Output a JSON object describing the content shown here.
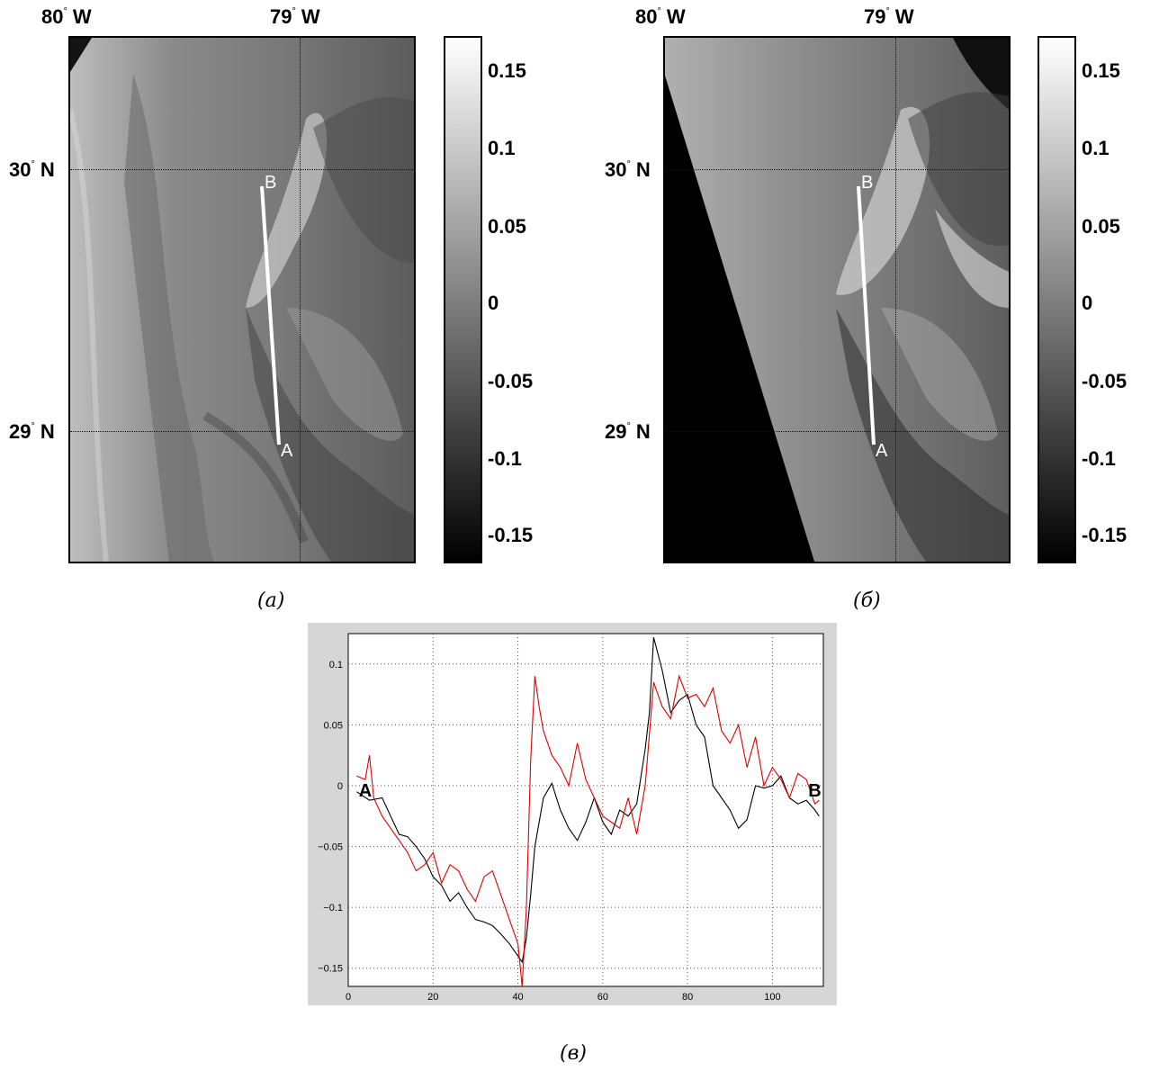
{
  "panels": [
    {
      "id": "a",
      "lon_labels": [
        "80",
        "W",
        "79",
        "W"
      ],
      "lat_labels": [
        "30",
        "N",
        "29",
        "N"
      ],
      "degree_mark": "°",
      "transect": {
        "start": "A",
        "end": "B"
      },
      "colorbar_ticks": [
        "0.15",
        "0.1",
        "0.05",
        "0",
        "-0.05",
        "-0.1",
        "-0.15"
      ],
      "caption": "(a)"
    },
    {
      "id": "b",
      "lon_labels": [
        "80",
        "W",
        "79",
        "W"
      ],
      "lat_labels": [
        "30",
        "N",
        "29",
        "N"
      ],
      "degree_mark": "°",
      "transect": {
        "start": "A",
        "end": "B"
      },
      "colorbar_ticks": [
        "0.15",
        "0.1",
        "0.05",
        "0",
        "-0.05",
        "-0.1",
        "-0.15"
      ],
      "caption": "(б)"
    }
  ],
  "chart_data": {
    "type": "line",
    "title": "",
    "xlabel": "",
    "ylabel": "",
    "xlim": [
      0,
      112
    ],
    "ylim": [
      -0.165,
      0.125
    ],
    "x_ticks": [
      "0",
      "20",
      "40",
      "60",
      "80",
      "100"
    ],
    "y_ticks": [
      "0.1",
      "0.05",
      "0",
      "−0.05",
      "−0.1",
      "−0.15"
    ],
    "grid": true,
    "endpoint_labels": {
      "start": "A",
      "end": "B"
    },
    "caption": "(в)",
    "series": [
      {
        "color": "#000000",
        "x": [
          2,
          5,
          8,
          10,
          12,
          14,
          16,
          18,
          20,
          22,
          24,
          26,
          28,
          30,
          32,
          34,
          36,
          38,
          40,
          41,
          42,
          43,
          44,
          46,
          48,
          50,
          52,
          54,
          56,
          58,
          60,
          62,
          64,
          66,
          68,
          70,
          71,
          72,
          74,
          76,
          78,
          80,
          82,
          84,
          86,
          88,
          90,
          92,
          94,
          96,
          98,
          100,
          102,
          104,
          106,
          108,
          110,
          111
        ],
        "y": [
          -0.005,
          -0.012,
          -0.01,
          -0.025,
          -0.04,
          -0.042,
          -0.05,
          -0.06,
          -0.075,
          -0.082,
          -0.095,
          -0.088,
          -0.1,
          -0.11,
          -0.112,
          -0.115,
          -0.122,
          -0.13,
          -0.14,
          -0.145,
          -0.125,
          -0.09,
          -0.05,
          -0.01,
          0.002,
          -0.02,
          -0.035,
          -0.045,
          -0.03,
          -0.01,
          -0.03,
          -0.04,
          -0.02,
          -0.025,
          -0.015,
          0.03,
          0.06,
          0.122,
          0.095,
          0.06,
          0.07,
          0.075,
          0.05,
          0.04,
          0.0,
          -0.01,
          -0.02,
          -0.035,
          -0.028,
          0.0,
          -0.002,
          0.0,
          0.008,
          -0.01,
          -0.015,
          -0.012,
          -0.02,
          -0.025
        ]
      },
      {
        "color": "#e00000",
        "x": [
          2,
          4,
          5,
          6,
          8,
          10,
          12,
          14,
          16,
          18,
          20,
          22,
          24,
          26,
          28,
          30,
          32,
          34,
          36,
          38,
          40,
          41,
          42,
          43,
          44,
          45,
          46,
          48,
          50,
          52,
          54,
          56,
          58,
          60,
          62,
          64,
          66,
          68,
          70,
          72,
          74,
          76,
          78,
          80,
          82,
          84,
          86,
          88,
          90,
          92,
          94,
          96,
          98,
          100,
          102,
          104,
          106,
          108,
          110,
          111
        ],
        "y": [
          0.008,
          0.005,
          0.025,
          -0.01,
          -0.025,
          -0.035,
          -0.045,
          -0.055,
          -0.07,
          -0.065,
          -0.055,
          -0.08,
          -0.065,
          -0.07,
          -0.085,
          -0.095,
          -0.075,
          -0.07,
          -0.09,
          -0.11,
          -0.13,
          -0.165,
          -0.1,
          0.02,
          0.09,
          0.065,
          0.045,
          0.025,
          0.015,
          0.0,
          0.035,
          0.005,
          -0.01,
          -0.025,
          -0.03,
          -0.035,
          -0.01,
          -0.04,
          0.0,
          0.085,
          0.065,
          0.055,
          0.09,
          0.072,
          0.075,
          0.065,
          0.08,
          0.045,
          0.035,
          0.05,
          0.015,
          0.04,
          0.0,
          0.015,
          0.005,
          -0.01,
          0.01,
          0.005,
          -0.015,
          -0.012
        ]
      }
    ]
  }
}
